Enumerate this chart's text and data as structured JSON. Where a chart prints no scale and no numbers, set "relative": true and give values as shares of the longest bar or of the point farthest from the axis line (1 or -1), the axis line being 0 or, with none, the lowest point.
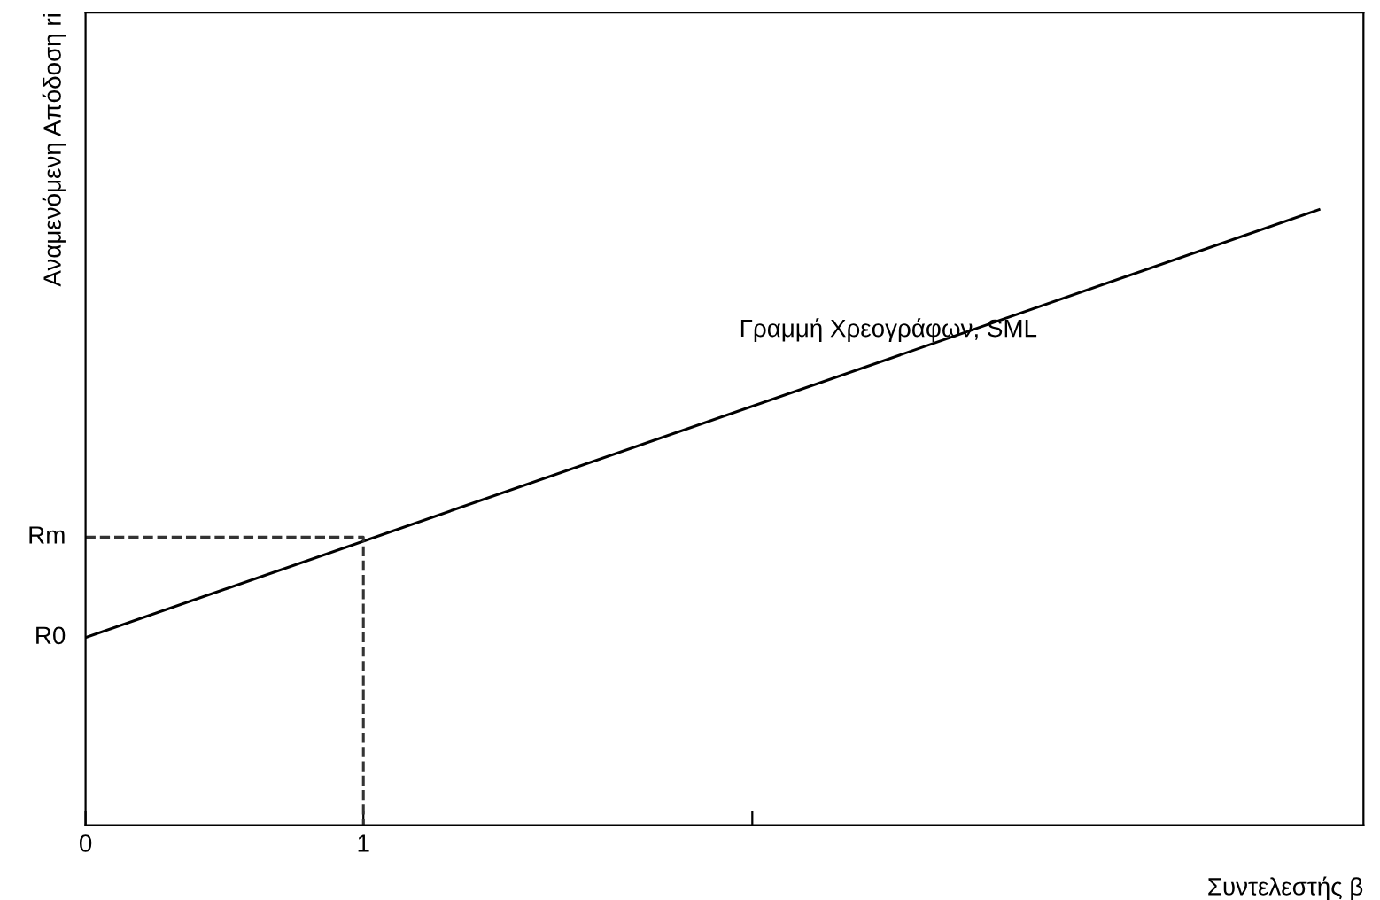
{
  "chart_data": {
    "type": "line",
    "relative": true,
    "xlabel": "Συντελεστής β",
    "ylabel": "Αναμενόμενη Απόδοση ri",
    "xlim": [
      0,
      4.6
    ],
    "xticks": [
      0,
      1,
      {
        "value": 2.4,
        "label": null
      }
    ],
    "series": [
      {
        "name": "Γραμμή Χρεογράφων, SML",
        "color": "#000000",
        "x": [
          0,
          4.44
        ],
        "values": [
          0.305,
          1
        ]
      },
      {
        "color": "#333333",
        "line_style": "dashed",
        "x": [
          0,
          1,
          1
        ],
        "values": [
          0.468,
          0.468,
          0
        ]
      }
    ],
    "annotations": [
      {
        "text": "R0",
        "x": 0,
        "y": 0.305
      },
      {
        "text": "Rm",
        "x": 0,
        "y": 0.468
      }
    ],
    "grid": false,
    "legend": false
  }
}
